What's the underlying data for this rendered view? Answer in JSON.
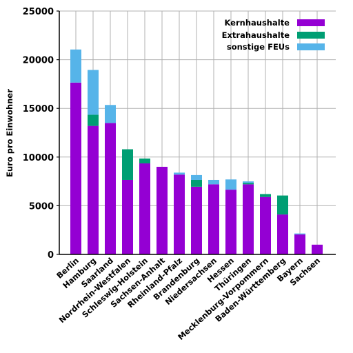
{
  "chart_data": {
    "type": "bar",
    "stacked": true,
    "ylabel": "Euro pro Einwohner",
    "xlabel": "",
    "ylim": [
      0,
      25000
    ],
    "yticks": [
      0,
      5000,
      10000,
      15000,
      20000,
      25000
    ],
    "grid": true,
    "legend_position": "top-right",
    "categories": [
      "Berlin",
      "Hamburg",
      "Saarland",
      "Nordrhein-Westfalen",
      "Schleswig-Holstein",
      "Sachsen-Anhalt",
      "Rheinland-Pfalz",
      "Brandenburg",
      "Niedersachsen",
      "Hessen",
      "Thüringen",
      "Mecklenburg-Vorpommern",
      "Baden-Württemberg",
      "Bayern",
      "Sachsen"
    ],
    "series": [
      {
        "name": "Kernhaushalte",
        "color": "#9400d3",
        "values": [
          17650,
          13200,
          13500,
          7650,
          9350,
          9000,
          8200,
          6950,
          7200,
          6650,
          7200,
          5900,
          4100,
          2050,
          1000
        ]
      },
      {
        "name": "Extrahaushalte",
        "color": "#009e73",
        "values": [
          0,
          1150,
          0,
          3150,
          500,
          0,
          0,
          700,
          0,
          0,
          150,
          300,
          1950,
          0,
          0
        ]
      },
      {
        "name": "sonstige FEUs",
        "color": "#56b4e9",
        "values": [
          3400,
          4600,
          1850,
          0,
          0,
          0,
          200,
          500,
          450,
          1050,
          150,
          0,
          0,
          100,
          0
        ]
      }
    ]
  }
}
